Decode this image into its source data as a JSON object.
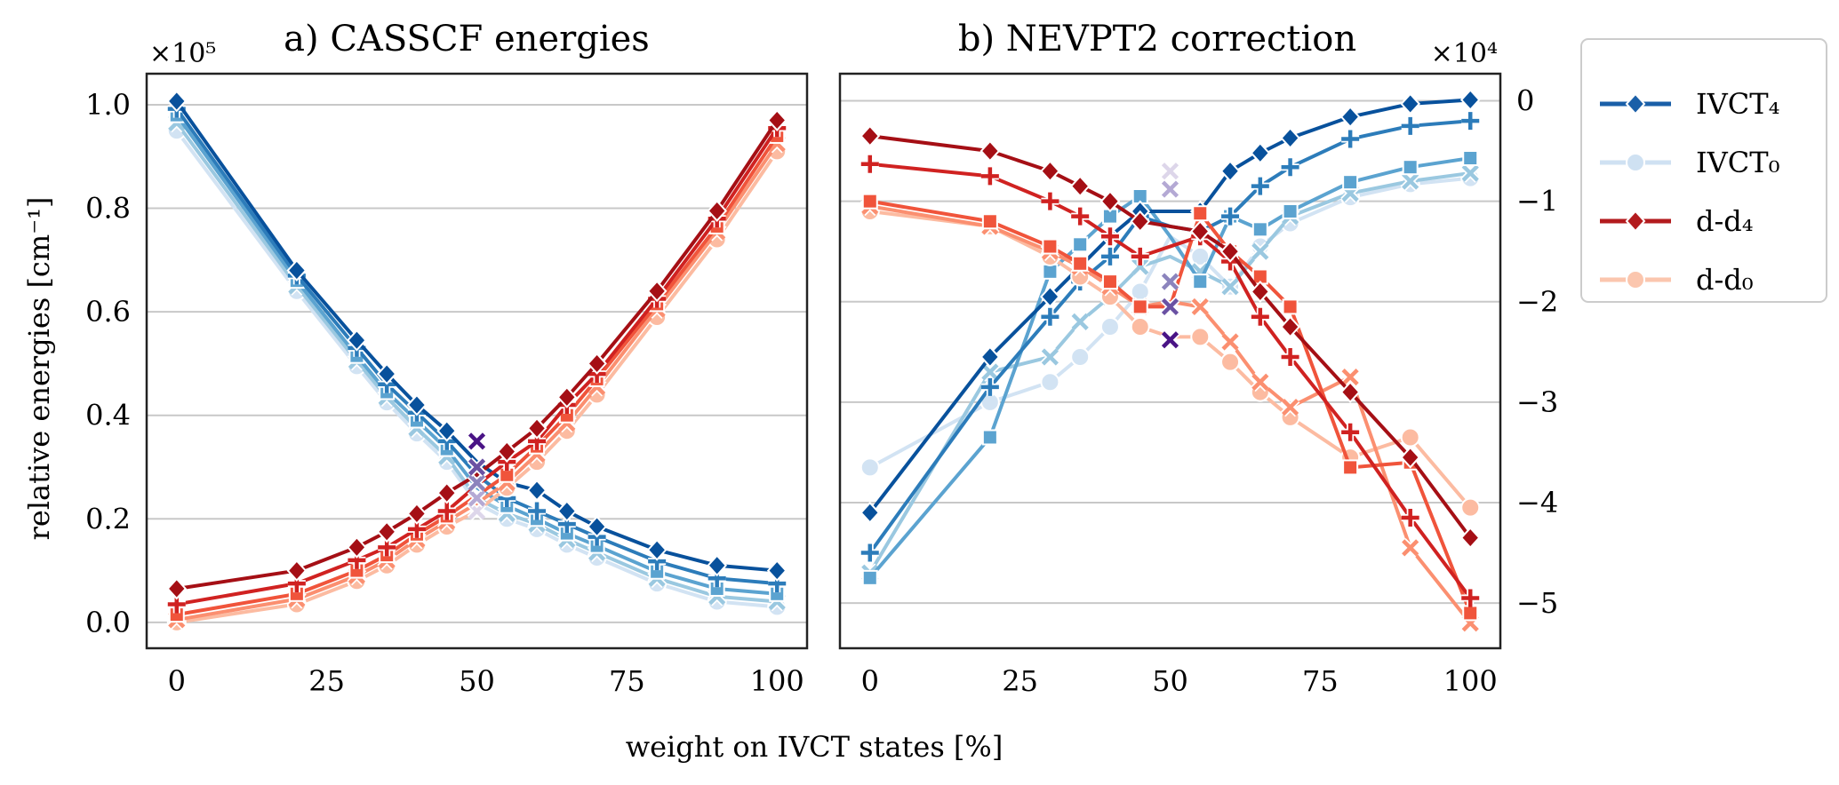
{
  "figure": {
    "xlabel": "weight on IVCT states [%]",
    "ylabel": "relative energies [cm⁻¹]"
  },
  "legend": {
    "items": [
      {
        "label": "IVCT₄",
        "color": "#1a5fa8"
      },
      {
        "label": "IVCT₀",
        "color": "#cfe1f2"
      },
      {
        "label": "d-d₄",
        "color": "#b31b1e"
      },
      {
        "label": "d-d₀",
        "color": "#fbc6ae"
      }
    ]
  },
  "colors": {
    "ivct": [
      "#d2e3f3",
      "#9ac8e0",
      "#5ba3d0",
      "#2c7cba",
      "#08519c"
    ],
    "dd": [
      "#fcbba1",
      "#fb8f70",
      "#f0543b",
      "#d02221",
      "#a50f15"
    ],
    "center": [
      "#ddd6ea",
      "#b4a9d4",
      "#8c84bd",
      "#6a51a3",
      "#4a1486"
    ]
  },
  "chart_data": [
    {
      "type": "line",
      "title": "a) CASSCF energies",
      "x": [
        0,
        20,
        30,
        35,
        40,
        45,
        50,
        55,
        60,
        65,
        70,
        80,
        90,
        100
      ],
      "xticks": [
        0,
        25,
        50,
        75,
        100
      ],
      "xlim": [
        -5,
        105
      ],
      "ylim": [
        -0.05,
        1.06
      ],
      "yticks": [
        0.0,
        0.2,
        0.4,
        0.6,
        0.8,
        1.0
      ],
      "yticklabels": [
        "0.0",
        "0.2",
        "0.4",
        "0.6",
        "0.8",
        "1.0"
      ],
      "scale_label": "×10⁵",
      "grid": "y",
      "ivct_series": [
        {
          "name": "IVCT₀",
          "marker": "circle",
          "values": [
            0.95,
            0.64,
            0.495,
            0.425,
            0.365,
            0.31,
            0.23,
            0.2,
            0.18,
            0.15,
            0.125,
            0.075,
            0.04,
            0.03
          ]
        },
        {
          "name": "IVCT₁",
          "marker": "x",
          "values": [
            0.965,
            0.65,
            0.505,
            0.435,
            0.375,
            0.32,
            0.24,
            0.21,
            0.19,
            0.16,
            0.135,
            0.085,
            0.05,
            0.04
          ]
        },
        {
          "name": "IVCT₂",
          "marker": "square",
          "values": [
            0.98,
            0.66,
            0.515,
            0.445,
            0.39,
            0.335,
            0.26,
            0.225,
            0.2,
            0.172,
            0.148,
            0.098,
            0.065,
            0.055
          ]
        },
        {
          "name": "IVCT₃",
          "marker": "plus",
          "values": [
            0.992,
            0.67,
            0.53,
            0.46,
            0.405,
            0.35,
            0.285,
            0.24,
            0.215,
            0.19,
            0.165,
            0.118,
            0.085,
            0.075
          ]
        },
        {
          "name": "IVCT₄",
          "marker": "diamond",
          "values": [
            1.007,
            0.68,
            0.545,
            0.48,
            0.42,
            0.37,
            0.31,
            0.27,
            0.255,
            0.215,
            0.185,
            0.14,
            0.11,
            0.1
          ]
        }
      ],
      "dd_series": [
        {
          "name": "d-d₀",
          "marker": "circle",
          "values": [
            0.0,
            0.035,
            0.08,
            0.11,
            0.15,
            0.185,
            0.215,
            0.26,
            0.31,
            0.37,
            0.44,
            0.59,
            0.74,
            0.91
          ]
        },
        {
          "name": "d-d₁",
          "marker": "x",
          "values": [
            0.005,
            0.045,
            0.09,
            0.12,
            0.16,
            0.195,
            0.23,
            0.27,
            0.325,
            0.385,
            0.455,
            0.605,
            0.755,
            0.925
          ]
        },
        {
          "name": "d-d₂",
          "marker": "square",
          "values": [
            0.015,
            0.055,
            0.1,
            0.13,
            0.17,
            0.205,
            0.245,
            0.285,
            0.34,
            0.4,
            0.47,
            0.615,
            0.765,
            0.94
          ]
        },
        {
          "name": "d-d₃",
          "marker": "plus",
          "values": [
            0.035,
            0.075,
            0.12,
            0.145,
            0.18,
            0.215,
            0.265,
            0.31,
            0.35,
            0.42,
            0.48,
            0.625,
            0.78,
            0.955
          ]
        },
        {
          "name": "d-d₄",
          "marker": "diamond",
          "values": [
            0.065,
            0.1,
            0.145,
            0.175,
            0.21,
            0.25,
            0.285,
            0.33,
            0.375,
            0.435,
            0.5,
            0.64,
            0.795,
            0.97
          ]
        }
      ],
      "center_values": [
        0.215,
        0.24,
        0.27,
        0.3,
        0.35
      ]
    },
    {
      "type": "line",
      "title": "b) NEVPT2 correction",
      "x": [
        0,
        20,
        30,
        35,
        40,
        45,
        50,
        55,
        60,
        65,
        70,
        80,
        90,
        100
      ],
      "xticks": [
        0,
        25,
        50,
        75,
        100
      ],
      "xlim": [
        -5,
        105
      ],
      "ylim": [
        -5.45,
        0.27
      ],
      "yticks": [
        0,
        -1,
        -2,
        -3,
        -4,
        -5
      ],
      "yticklabels": [
        "0",
        "−1",
        "−2",
        "−3",
        "−4",
        "−5"
      ],
      "scale_label": "×10⁴",
      "grid": "y",
      "ivct_series": [
        {
          "name": "IVCT₀",
          "marker": "circle",
          "values": [
            -3.65,
            -3.0,
            -2.8,
            -2.55,
            -2.25,
            -1.9,
            -1.35,
            -1.55,
            -1.85,
            -1.45,
            -1.22,
            -0.96,
            -0.83,
            -0.77
          ]
        },
        {
          "name": "IVCT₁",
          "marker": "x",
          "values": [
            -4.7,
            -2.7,
            -2.55,
            -2.2,
            -1.95,
            -1.65,
            -1.55,
            -1.7,
            -1.85,
            -1.5,
            -1.15,
            -0.92,
            -0.8,
            -0.72
          ]
        },
        {
          "name": "IVCT₂",
          "marker": "square",
          "values": [
            -4.75,
            -3.35,
            -1.7,
            -1.43,
            -1.15,
            -0.95,
            -1.35,
            -1.8,
            -1.15,
            -1.28,
            -1.1,
            -0.81,
            -0.66,
            -0.57
          ]
        },
        {
          "name": "IVCT₃",
          "marker": "plus",
          "values": [
            -4.5,
            -2.85,
            -2.15,
            -1.8,
            -1.55,
            -1.15,
            -1.25,
            -1.3,
            -1.15,
            -0.85,
            -0.66,
            -0.38,
            -0.25,
            -0.2
          ]
        },
        {
          "name": "IVCT₄",
          "marker": "diamond",
          "values": [
            -4.1,
            -2.55,
            -1.95,
            -1.65,
            -1.35,
            -1.1,
            -1.1,
            -1.1,
            -0.7,
            -0.52,
            -0.37,
            -0.16,
            -0.03,
            0.01
          ]
        }
      ],
      "dd_series": [
        {
          "name": "d-d₀",
          "marker": "circle",
          "values": [
            -1.1,
            -1.25,
            -1.55,
            -1.75,
            -1.95,
            -2.25,
            -2.35,
            -2.35,
            -2.6,
            -2.9,
            -3.15,
            -3.55,
            -3.35,
            -4.05
          ]
        },
        {
          "name": "d-d₁",
          "marker": "x",
          "values": [
            -1.05,
            -1.25,
            -1.5,
            -1.65,
            -1.85,
            -2.05,
            -2.0,
            -2.05,
            -2.4,
            -2.8,
            -3.05,
            -2.75,
            -4.45,
            -5.2
          ]
        },
        {
          "name": "d-d₂",
          "marker": "square",
          "values": [
            -1.0,
            -1.2,
            -1.45,
            -1.62,
            -1.8,
            -2.05,
            -2.05,
            -1.12,
            -1.5,
            -1.75,
            -2.05,
            -3.65,
            -3.6,
            -5.1
          ]
        },
        {
          "name": "d-d₃",
          "marker": "plus",
          "values": [
            -0.63,
            -0.75,
            -1.0,
            -1.15,
            -1.35,
            -1.55,
            -1.45,
            -1.35,
            -1.6,
            -2.15,
            -2.55,
            -3.3,
            -4.15,
            -4.95
          ]
        },
        {
          "name": "d-d₄",
          "marker": "diamond",
          "values": [
            -0.35,
            -0.5,
            -0.7,
            -0.85,
            -1.0,
            -1.2,
            -1.25,
            -1.3,
            -1.5,
            -1.9,
            -2.25,
            -2.9,
            -3.55,
            -4.35
          ]
        }
      ],
      "center_values": [
        -0.7,
        -0.88,
        -1.8,
        -2.05,
        -2.38
      ]
    }
  ]
}
